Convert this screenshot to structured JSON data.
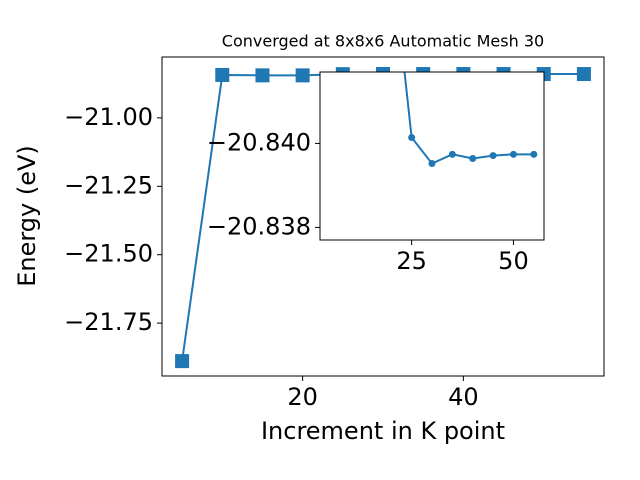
{
  "chart_data": {
    "type": "line",
    "title": "Converged at 8x8x6 Automatic Mesh 30",
    "xlabel": "Increment in K point",
    "ylabel": "Energy (eV)",
    "x": [
      5,
      10,
      15,
      20,
      25,
      30,
      35,
      40,
      45,
      50,
      55
    ],
    "series": [
      {
        "color": "#1f77b4",
        "values": [
          -21.889,
          -20.843,
          -20.8445,
          -20.8446,
          -20.84014,
          -20.83952,
          -20.83974,
          -20.83964,
          -20.83971,
          -20.83974,
          -20.83974
        ]
      }
    ],
    "xlim": [
      2.5,
      57.5
    ],
    "ylim": [
      -21.9434,
      -20.7774
    ],
    "xticks": [
      20,
      40
    ],
    "yticks": [
      {
        "value": -21.75,
        "label": "−21.75"
      },
      {
        "value": -21.5,
        "label": "−21.50"
      },
      {
        "value": -21.25,
        "label": "−21.25"
      },
      {
        "value": -21,
        "label": "−21.00"
      }
    ],
    "inset": {
      "xlim": [
        2.5,
        57.5
      ],
      "ylim": [
        -20.8377,
        -20.8417
      ],
      "xticks": [
        25,
        50
      ],
      "yticks": [
        {
          "value": -20.84,
          "label": "−20.840"
        },
        {
          "value": -20.838,
          "label": "−20.838"
        }
      ]
    }
  }
}
